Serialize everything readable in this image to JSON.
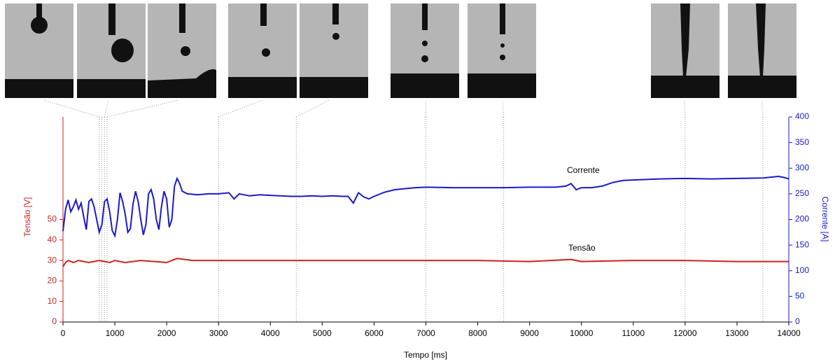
{
  "chart_data": {
    "type": "line",
    "x_label": "Tempo [ms]",
    "y_label": "Tensão [V]",
    "y2_label": "Corrente [A]",
    "xlim": [
      0,
      14000
    ],
    "xticks": [
      0,
      1000,
      2000,
      3000,
      4000,
      5000,
      6000,
      7000,
      8000,
      9000,
      10000,
      11000,
      12000,
      13000,
      14000
    ],
    "ylim": [
      0,
      100
    ],
    "yticks": [
      0,
      10,
      20,
      30,
      40,
      50
    ],
    "y2lim": [
      0,
      400
    ],
    "y2ticks": [
      0,
      50,
      100,
      150,
      200,
      250,
      300,
      350,
      400
    ],
    "reference_lines_x": [
      700,
      750,
      800,
      850,
      3000,
      4500,
      7000,
      8500,
      12000,
      13500
    ],
    "series": [
      {
        "name": "Corrente",
        "color": "#1a1acc",
        "axis": "y2",
        "x": [
          0,
          50,
          100,
          150,
          200,
          250,
          300,
          350,
          400,
          450,
          500,
          550,
          600,
          650,
          700,
          750,
          800,
          850,
          900,
          950,
          1000,
          1050,
          1100,
          1150,
          1200,
          1250,
          1300,
          1350,
          1400,
          1450,
          1500,
          1550,
          1600,
          1650,
          1700,
          1750,
          1800,
          1850,
          1900,
          1950,
          2000,
          2050,
          2100,
          2150,
          2200,
          2250,
          2300,
          2400,
          2600,
          2800,
          3000,
          3200,
          3300,
          3400,
          3600,
          3800,
          4000,
          4200,
          4400,
          4600,
          4800,
          5000,
          5200,
          5400,
          5500,
          5600,
          5700,
          5800,
          5900,
          6000,
          6200,
          6400,
          6600,
          6800,
          7000,
          7500,
          8000,
          8500,
          9000,
          9500,
          9700,
          9800,
          9900,
          10000,
          10200,
          10400,
          10600,
          10800,
          11000,
          11500,
          12000,
          12500,
          13000,
          13500,
          13800,
          13900,
          14000
        ],
        "values": [
          177,
          220,
          238,
          215,
          225,
          238,
          220,
          232,
          205,
          180,
          235,
          240,
          225,
          200,
          175,
          190,
          235,
          240,
          215,
          178,
          168,
          200,
          252,
          235,
          210,
          175,
          182,
          230,
          255,
          235,
          200,
          170,
          190,
          250,
          258,
          240,
          200,
          180,
          225,
          255,
          240,
          185,
          200,
          265,
          280,
          270,
          255,
          250,
          248,
          250,
          250,
          252,
          240,
          250,
          246,
          248,
          247,
          246,
          245,
          245,
          246,
          245,
          246,
          245,
          245,
          232,
          252,
          244,
          240,
          245,
          253,
          258,
          260,
          262,
          263,
          262,
          262,
          262,
          263,
          263,
          265,
          270,
          258,
          262,
          262,
          265,
          272,
          276,
          277,
          279,
          280,
          279,
          280,
          281,
          284,
          282,
          279
        ]
      },
      {
        "name": "Tensão",
        "color": "#cc2222",
        "axis": "y",
        "x": [
          0,
          50,
          100,
          200,
          300,
          500,
          700,
          900,
          1000,
          1200,
          1500,
          2000,
          2200,
          2500,
          3000,
          4000,
          5000,
          6000,
          7000,
          8000,
          9000,
          9800,
          10000,
          11000,
          12000,
          13000,
          14000
        ],
        "values": [
          27,
          29,
          30,
          29,
          30,
          29,
          30,
          29,
          30,
          29,
          30,
          29,
          31,
          30,
          30,
          30,
          30,
          30,
          30,
          30,
          29.5,
          30.5,
          29.5,
          30,
          30,
          29.5,
          29.5
        ]
      }
    ]
  }
}
